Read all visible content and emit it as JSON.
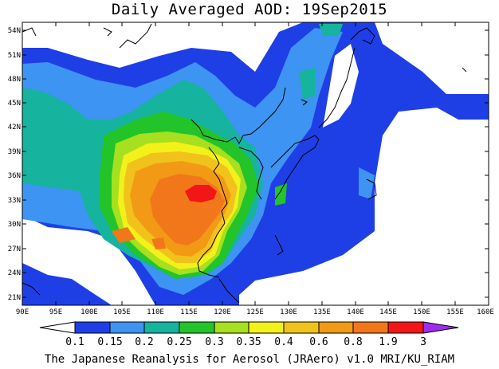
{
  "title": "Daily Averaged AOD: 19Sep2015",
  "credit": "The Japanese Reanalysis for Aerosol (JRAero) v1.0 MRI/KU_RIAM",
  "map": {
    "lon_range": [
      90,
      160
    ],
    "lat_range": [
      20,
      55
    ],
    "lon_ticks": [
      "90E",
      "95E",
      "100E",
      "105E",
      "110E",
      "115E",
      "120E",
      "125E",
      "130E",
      "135E",
      "140E",
      "145E",
      "150E",
      "155E",
      "160E"
    ],
    "lat_ticks": [
      "54N",
      "51N",
      "48N",
      "45N",
      "42N",
      "39N",
      "36N",
      "33N",
      "30N",
      "27N",
      "24N",
      "21N"
    ]
  },
  "colorbar": {
    "labels": [
      "0.1",
      "0.15",
      "0.2",
      "0.25",
      "0.3",
      "0.35",
      "0.4",
      "0.6",
      "0.8",
      "1.9",
      "3"
    ],
    "colors": [
      "#ffffff",
      "#1f3fe6",
      "#3d94f2",
      "#16b39f",
      "#22c42a",
      "#a6e01e",
      "#f2f21a",
      "#f2c21c",
      "#f29a16",
      "#f2771a",
      "#f21616",
      "#9e2df0"
    ]
  },
  "fields": {
    "ocean": "#ffffff",
    "coast": "#000000"
  }
}
